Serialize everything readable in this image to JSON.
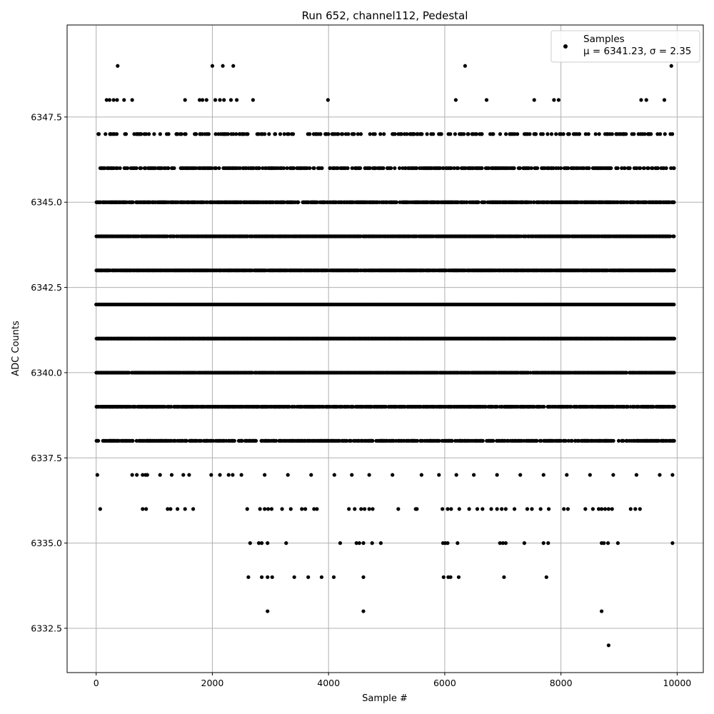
{
  "chart_data": {
    "type": "scatter",
    "title": "Run 652, channel112, Pedestal",
    "xlabel": "Sample #",
    "ylabel": "ADC Counts",
    "xlim": [
      -500,
      10450
    ],
    "ylim": [
      6331.2,
      6350.2
    ],
    "x_ticks": [
      0,
      2000,
      4000,
      6000,
      8000,
      10000
    ],
    "x_tick_labels": [
      "0",
      "2000",
      "4000",
      "6000",
      "8000",
      "10000"
    ],
    "y_ticks": [
      6332.5,
      6335.0,
      6337.5,
      6340.0,
      6342.5,
      6345.0,
      6347.5
    ],
    "y_tick_labels": [
      "6332.5",
      "6335.0",
      "6337.5",
      "6340.0",
      "6342.5",
      "6345.0",
      "6347.5"
    ],
    "grid": true,
    "legend_position": "top-right",
    "marker_color": "#000000",
    "series": [
      {
        "name": "Samples",
        "stats_label": "μ = 6341.23, σ = 2.35",
        "points": [
          [
            370,
            6349
          ],
          [
            2000,
            6349
          ],
          [
            2180,
            6349
          ],
          [
            2360,
            6349
          ],
          [
            6350,
            6349
          ],
          [
            9900,
            6349
          ],
          [
            180,
            6348
          ],
          [
            230,
            6348
          ],
          [
            300,
            6348
          ],
          [
            360,
            6348
          ],
          [
            480,
            6348
          ],
          [
            620,
            6348
          ],
          [
            1530,
            6348
          ],
          [
            1780,
            6348
          ],
          [
            1830,
            6348
          ],
          [
            1900,
            6348
          ],
          [
            2050,
            6348
          ],
          [
            2130,
            6348
          ],
          [
            2200,
            6348
          ],
          [
            2320,
            6348
          ],
          [
            2420,
            6348
          ],
          [
            2700,
            6348
          ],
          [
            3990,
            6348
          ],
          [
            6190,
            6348
          ],
          [
            6720,
            6348
          ],
          [
            7540,
            6348
          ],
          [
            7880,
            6348
          ],
          [
            7960,
            6348
          ],
          [
            9380,
            6348
          ],
          [
            9470,
            6348
          ],
          [
            9780,
            6348
          ],
          [
            8820,
            6332
          ],
          [
            2950,
            6333
          ],
          [
            4600,
            6333
          ],
          [
            8700,
            6333
          ],
          [
            2620,
            6334
          ],
          [
            2850,
            6334
          ],
          [
            2950,
            6334
          ],
          [
            3030,
            6334
          ],
          [
            3410,
            6334
          ],
          [
            3650,
            6334
          ],
          [
            3880,
            6334
          ],
          [
            4090,
            6334
          ],
          [
            4600,
            6334
          ],
          [
            5980,
            6334
          ],
          [
            6060,
            6334
          ],
          [
            6100,
            6334
          ],
          [
            6240,
            6334
          ],
          [
            7020,
            6334
          ],
          [
            7750,
            6334
          ],
          [
            2650,
            6335
          ],
          [
            2800,
            6335
          ],
          [
            2850,
            6335
          ],
          [
            2950,
            6335
          ],
          [
            3270,
            6335
          ],
          [
            4200,
            6335
          ],
          [
            4480,
            6335
          ],
          [
            4530,
            6335
          ],
          [
            4600,
            6335
          ],
          [
            4750,
            6335
          ],
          [
            4900,
            6335
          ],
          [
            5970,
            6335
          ],
          [
            6010,
            6335
          ],
          [
            6050,
            6335
          ],
          [
            6220,
            6335
          ],
          [
            6950,
            6335
          ],
          [
            7000,
            6335
          ],
          [
            7050,
            6335
          ],
          [
            7370,
            6335
          ],
          [
            7700,
            6335
          ],
          [
            7780,
            6335
          ],
          [
            8700,
            6335
          ],
          [
            8740,
            6335
          ],
          [
            8810,
            6335
          ],
          [
            8980,
            6335
          ],
          [
            9920,
            6335
          ],
          [
            70,
            6336
          ],
          [
            800,
            6336
          ],
          [
            860,
            6336
          ],
          [
            1230,
            6336
          ],
          [
            1280,
            6336
          ],
          [
            1400,
            6336
          ],
          [
            1530,
            6336
          ],
          [
            1670,
            6336
          ],
          [
            2600,
            6336
          ],
          [
            2820,
            6336
          ],
          [
            2900,
            6336
          ],
          [
            2960,
            6336
          ],
          [
            3020,
            6336
          ],
          [
            3200,
            6336
          ],
          [
            3350,
            6336
          ],
          [
            3540,
            6336
          ],
          [
            3600,
            6336
          ],
          [
            3750,
            6336
          ],
          [
            3800,
            6336
          ],
          [
            4350,
            6336
          ],
          [
            4450,
            6336
          ],
          [
            4560,
            6336
          ],
          [
            4620,
            6336
          ],
          [
            4700,
            6336
          ],
          [
            4760,
            6336
          ],
          [
            5200,
            6336
          ],
          [
            5500,
            6336
          ],
          [
            5520,
            6336
          ],
          [
            5960,
            6336
          ],
          [
            6050,
            6336
          ],
          [
            6110,
            6336
          ],
          [
            6250,
            6336
          ],
          [
            6420,
            6336
          ],
          [
            6560,
            6336
          ],
          [
            6650,
            6336
          ],
          [
            6800,
            6336
          ],
          [
            6900,
            6336
          ],
          [
            6980,
            6336
          ],
          [
            7050,
            6336
          ],
          [
            7200,
            6336
          ],
          [
            7420,
            6336
          ],
          [
            7500,
            6336
          ],
          [
            7650,
            6336
          ],
          [
            7790,
            6336
          ],
          [
            8050,
            6336
          ],
          [
            8120,
            6336
          ],
          [
            8420,
            6336
          ],
          [
            8550,
            6336
          ],
          [
            8650,
            6336
          ],
          [
            8700,
            6336
          ],
          [
            8760,
            6336
          ],
          [
            8820,
            6336
          ],
          [
            8880,
            6336
          ],
          [
            9200,
            6336
          ],
          [
            9280,
            6336
          ],
          [
            9360,
            6336
          ],
          [
            20,
            6337
          ],
          [
            620,
            6337
          ],
          [
            700,
            6337
          ],
          [
            800,
            6337
          ],
          [
            850,
            6337
          ],
          [
            880,
            6337
          ],
          [
            1100,
            6337
          ],
          [
            1300,
            6337
          ],
          [
            1500,
            6337
          ],
          [
            1600,
            6337
          ],
          [
            1980,
            6337
          ],
          [
            2130,
            6337
          ],
          [
            2280,
            6337
          ],
          [
            2350,
            6337
          ],
          [
            2500,
            6337
          ],
          [
            2900,
            6337
          ],
          [
            3300,
            6337
          ],
          [
            3700,
            6337
          ],
          [
            4100,
            6337
          ],
          [
            4400,
            6337
          ],
          [
            4700,
            6337
          ],
          [
            5100,
            6337
          ],
          [
            5600,
            6337
          ],
          [
            5900,
            6337
          ],
          [
            6200,
            6337
          ],
          [
            6500,
            6337
          ],
          [
            6900,
            6337
          ],
          [
            7300,
            6337
          ],
          [
            7700,
            6337
          ],
          [
            8100,
            6337
          ],
          [
            8500,
            6337
          ],
          [
            8900,
            6337
          ],
          [
            9300,
            6337
          ],
          [
            9700,
            6337
          ],
          [
            9920,
            6337
          ]
        ],
        "dense_levels": [
          {
            "y": 6338,
            "x_range": [
              0,
              9950
            ],
            "density": 0.55
          },
          {
            "y": 6339,
            "x_range": [
              0,
              9950
            ],
            "density": 0.75
          },
          {
            "y": 6340,
            "x_range": [
              0,
              9950
            ],
            "density": 0.85
          },
          {
            "y": 6341,
            "x_range": [
              0,
              9950
            ],
            "density": 1.0
          },
          {
            "y": 6342,
            "x_range": [
              0,
              9950
            ],
            "density": 1.0
          },
          {
            "y": 6343,
            "x_range": [
              0,
              9950
            ],
            "density": 0.9
          },
          {
            "y": 6344,
            "x_range": [
              0,
              9950
            ],
            "density": 0.8
          },
          {
            "y": 6345,
            "x_range": [
              0,
              9950
            ],
            "density": 0.7
          },
          {
            "y": 6346,
            "x_range": [
              0,
              9950
            ],
            "density": 0.4
          },
          {
            "y": 6347,
            "x_range": [
              0,
              9950
            ],
            "density": 0.22
          }
        ]
      }
    ]
  }
}
